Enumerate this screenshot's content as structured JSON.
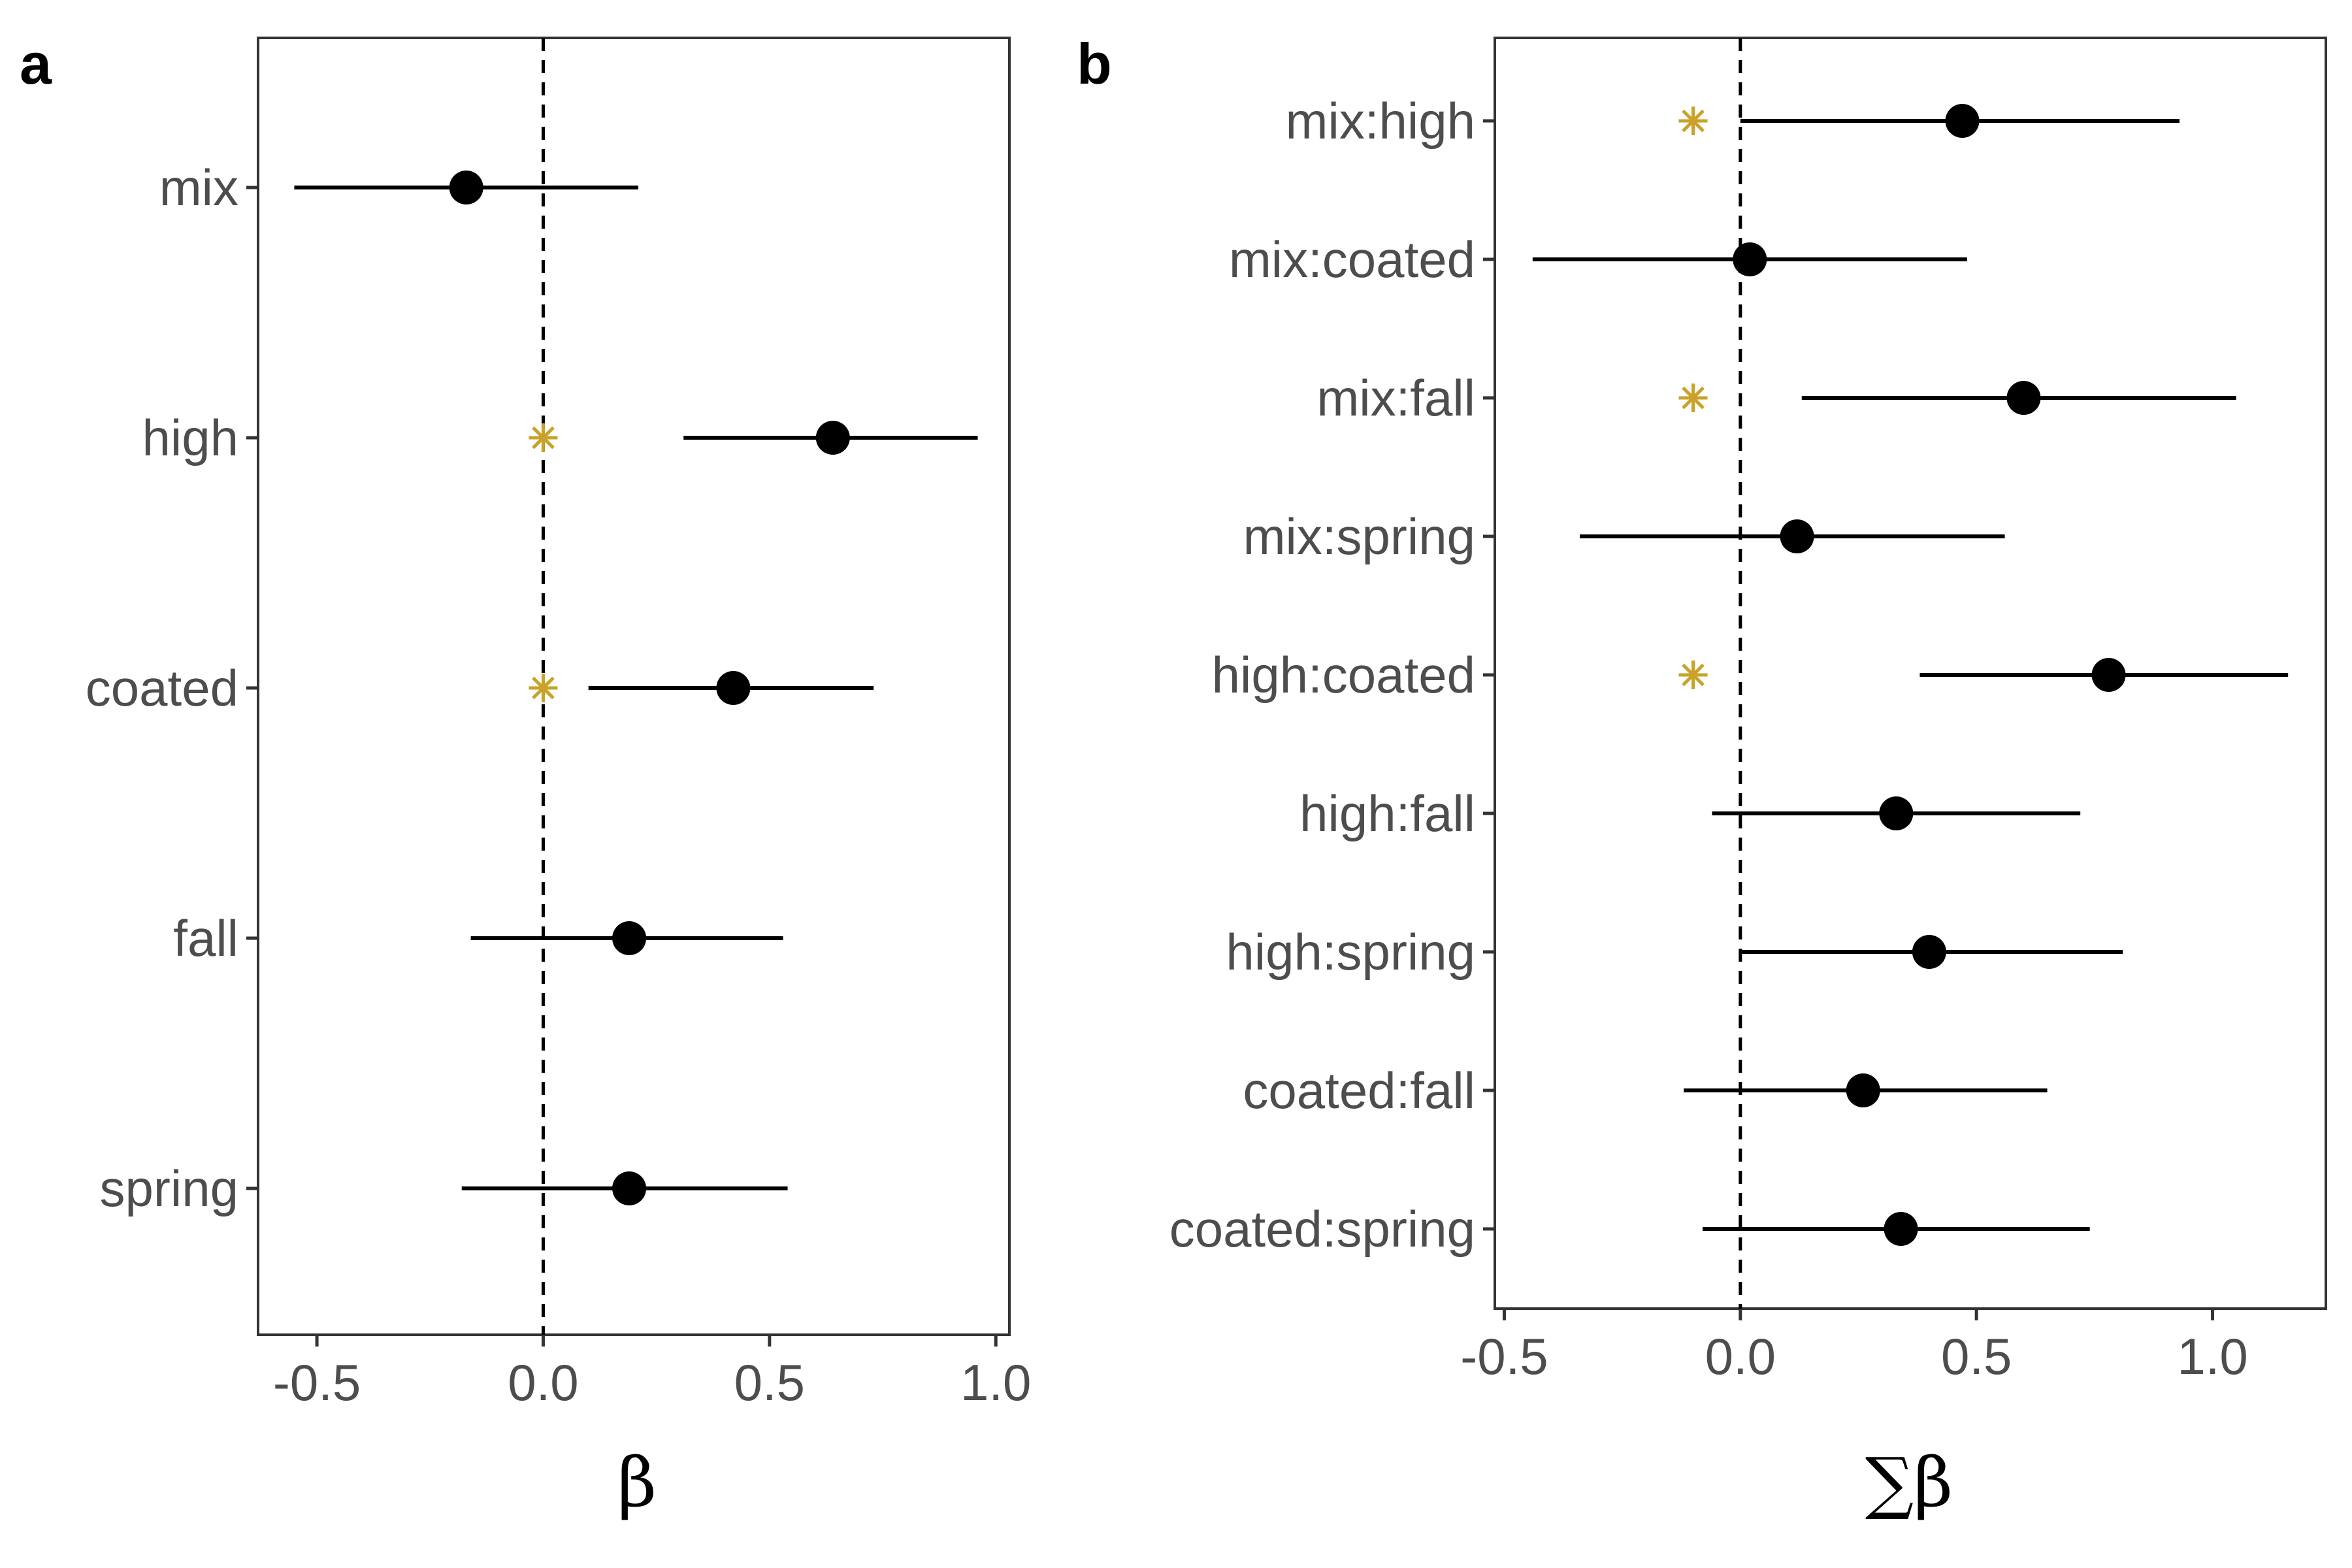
{
  "chart_data": [
    {
      "type": "scatter",
      "panel_label": "a",
      "xlabel": "β",
      "ylabel": "",
      "xlim": [
        -0.63,
        1.03
      ],
      "xticks": [
        "-0.5",
        "0.0",
        "0.5",
        "1.0"
      ],
      "xtick_values": [
        -0.5,
        0.0,
        0.5,
        1.0
      ],
      "zero_line": 0.0,
      "categories": [
        "mix",
        "high",
        "coated",
        "fall",
        "spring"
      ],
      "estimates": [
        -0.17,
        0.64,
        0.42,
        0.19,
        0.19
      ],
      "lower": [
        -0.55,
        0.31,
        0.1,
        -0.16,
        -0.18
      ],
      "upper": [
        0.21,
        0.96,
        0.73,
        0.53,
        0.54
      ],
      "significant": [
        false,
        true,
        true,
        false,
        false
      ],
      "star_x": 0.0,
      "star_color": "#c9a227",
      "grid": false
    },
    {
      "type": "scatter",
      "panel_label": "b",
      "xlabel": "∑β",
      "ylabel": "",
      "xlim": [
        -0.52,
        1.24
      ],
      "xticks": [
        "-0.5",
        "0.0",
        "0.5",
        "1.0"
      ],
      "xtick_values": [
        -0.5,
        0.0,
        0.5,
        1.0
      ],
      "zero_line": 0.0,
      "categories": [
        "mix:high",
        "mix:coated",
        "mix:fall",
        "mix:spring",
        "high:coated",
        "high:fall",
        "high:spring",
        "coated:fall",
        "coated:spring"
      ],
      "estimates": [
        0.47,
        0.02,
        0.6,
        0.12,
        0.78,
        0.33,
        0.4,
        0.26,
        0.34
      ],
      "lower": [
        0.0,
        -0.44,
        0.13,
        -0.34,
        0.38,
        -0.06,
        0.0,
        -0.12,
        -0.08
      ],
      "upper": [
        0.93,
        0.48,
        1.05,
        0.56,
        1.16,
        0.72,
        0.81,
        0.65,
        0.74
      ],
      "significant": [
        true,
        false,
        true,
        false,
        true,
        false,
        false,
        false,
        false
      ],
      "star_x": -0.1,
      "star_color": "#c9a227",
      "grid": false
    }
  ]
}
